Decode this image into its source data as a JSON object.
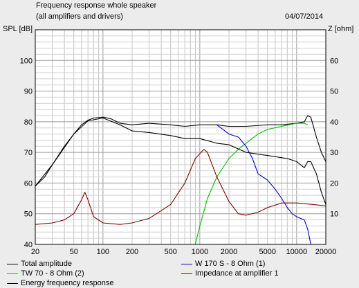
{
  "header": {
    "title": "Frequency response whole speaker",
    "subtitle": "(all amplifiers and drivers)",
    "date": "04/07/2014",
    "left_axis_label": "SPL [dB]",
    "right_axis_label": "Z [ohm]"
  },
  "chart_data": {
    "type": "line",
    "title": "Frequency response whole speaker",
    "subtitle": "(all amplifiers and drivers)",
    "ylabel": "SPL [dB]",
    "y2label": "Z [ohm]",
    "xscale": "log",
    "xlim": [
      20,
      20000
    ],
    "ylim": [
      40,
      110
    ],
    "y2lim": [
      0,
      70
    ],
    "grid": true,
    "legend_position": "bottom",
    "x_ticks": [
      "20",
      "50",
      "100",
      "200",
      "500",
      "1000",
      "2000",
      "5000",
      "10000",
      "20000"
    ],
    "y_ticks": [
      "40",
      "50",
      "60",
      "70",
      "80",
      "90",
      "100"
    ],
    "y2_ticks": [
      "10",
      "20",
      "30",
      "40",
      "50",
      "60"
    ],
    "series": [
      {
        "name": "Total amplitude",
        "color": "#000000",
        "axis": "left",
        "points": [
          [
            20,
            59
          ],
          [
            25,
            62
          ],
          [
            30,
            66
          ],
          [
            40,
            72
          ],
          [
            50,
            76
          ],
          [
            60,
            79
          ],
          [
            70,
            80.5
          ],
          [
            80,
            81.2
          ],
          [
            100,
            81.5
          ],
          [
            120,
            81
          ],
          [
            150,
            79.5
          ],
          [
            200,
            79
          ],
          [
            300,
            79.5
          ],
          [
            500,
            79
          ],
          [
            700,
            78.5
          ],
          [
            1000,
            79
          ],
          [
            1500,
            79
          ],
          [
            2000,
            78.5
          ],
          [
            3000,
            78.5
          ],
          [
            5000,
            79
          ],
          [
            7000,
            79
          ],
          [
            10000,
            79.5
          ],
          [
            12000,
            80
          ],
          [
            13000,
            82
          ],
          [
            14000,
            81.5
          ],
          [
            16000,
            75
          ],
          [
            18000,
            70
          ],
          [
            20000,
            67
          ]
        ]
      },
      {
        "name": "TW 70 - 8 Ohm (2)",
        "color": "#00c000",
        "axis": "left",
        "points": [
          [
            20,
            40
          ],
          [
            900,
            40
          ],
          [
            1000,
            46
          ],
          [
            1200,
            55
          ],
          [
            1500,
            62
          ],
          [
            2000,
            68
          ],
          [
            2500,
            71
          ],
          [
            3000,
            73
          ],
          [
            4000,
            76
          ],
          [
            5000,
            77.5
          ],
          [
            7000,
            78.5
          ],
          [
            10000,
            79.5
          ],
          [
            12000,
            79.5
          ],
          [
            13000,
            79
          ]
        ]
      },
      {
        "name": "Energy frequency response",
        "color": "#000000",
        "axis": "left",
        "points": [
          [
            20,
            59
          ],
          [
            30,
            66
          ],
          [
            50,
            76
          ],
          [
            70,
            80.3
          ],
          [
            100,
            81.2
          ],
          [
            150,
            79
          ],
          [
            200,
            77
          ],
          [
            300,
            76.5
          ],
          [
            500,
            75.5
          ],
          [
            700,
            74.5
          ],
          [
            1000,
            74.5
          ],
          [
            1500,
            73
          ],
          [
            2000,
            72.5
          ],
          [
            3000,
            70
          ],
          [
            5000,
            69
          ],
          [
            8000,
            68
          ],
          [
            10000,
            67
          ],
          [
            12000,
            65
          ],
          [
            13000,
            67
          ],
          [
            14000,
            67
          ],
          [
            16000,
            63
          ],
          [
            18000,
            57
          ],
          [
            20000,
            53
          ]
        ]
      },
      {
        "name": "W 170 S - 8 Ohm (1)",
        "color": "#0000c8",
        "axis": "left",
        "points": [
          [
            1500,
            79
          ],
          [
            2000,
            76
          ],
          [
            2500,
            75
          ],
          [
            3000,
            72
          ],
          [
            3500,
            68
          ],
          [
            4000,
            63
          ],
          [
            5000,
            61
          ],
          [
            6000,
            58
          ],
          [
            7000,
            55
          ],
          [
            8000,
            52
          ],
          [
            9000,
            50
          ],
          [
            10000,
            49
          ],
          [
            12000,
            48
          ],
          [
            13000,
            45
          ],
          [
            14000,
            40
          ]
        ]
      },
      {
        "name": "Impedance at amplifier 1",
        "color": "#800000",
        "axis": "right",
        "points": [
          [
            20,
            6.5
          ],
          [
            30,
            7
          ],
          [
            40,
            8
          ],
          [
            50,
            10
          ],
          [
            60,
            14.5
          ],
          [
            65,
            17
          ],
          [
            70,
            14.5
          ],
          [
            80,
            9
          ],
          [
            100,
            7
          ],
          [
            150,
            6.5
          ],
          [
            200,
            7
          ],
          [
            300,
            8.5
          ],
          [
            500,
            13
          ],
          [
            700,
            20
          ],
          [
            900,
            28
          ],
          [
            1100,
            31
          ],
          [
            1200,
            30
          ],
          [
            1500,
            22
          ],
          [
            2000,
            14
          ],
          [
            2500,
            10
          ],
          [
            3000,
            9.5
          ],
          [
            4000,
            10.5
          ],
          [
            5000,
            12
          ],
          [
            7000,
            13.5
          ],
          [
            10000,
            13.5
          ],
          [
            15000,
            13
          ],
          [
            20000,
            12.5
          ]
        ]
      }
    ]
  }
}
